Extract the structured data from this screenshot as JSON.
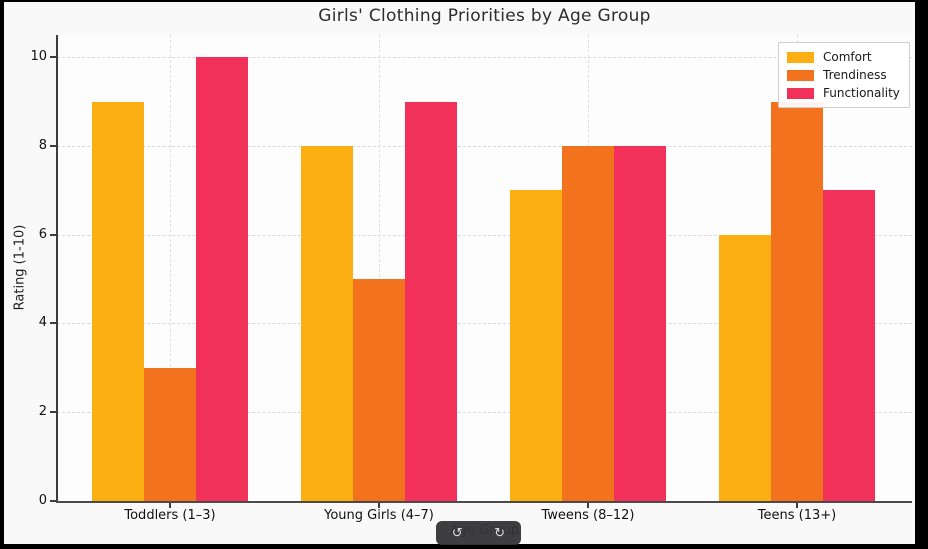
{
  "chart_data": {
    "type": "bar",
    "title": "Girls' Clothing Priorities by Age Group",
    "xlabel": "Age Group",
    "ylabel": "Rating (1-10)",
    "categories": [
      "Toddlers (1–3)",
      "Young Girls (4–7)",
      "Tweens (8–12)",
      "Teens (13+)"
    ],
    "series": [
      {
        "name": "Comfort",
        "color": "#FCAF13",
        "values": [
          9,
          8,
          7,
          6
        ]
      },
      {
        "name": "Trendiness",
        "color": "#F3721D",
        "values": [
          3,
          5,
          8,
          9
        ]
      },
      {
        "name": "Functionality",
        "color": "#F2315A",
        "values": [
          10,
          9,
          8,
          7
        ]
      }
    ],
    "ylim": [
      0,
      10.5
    ],
    "yticks": [
      0,
      2,
      4,
      6,
      8,
      10
    ],
    "grid": true,
    "legend_position": "top-right"
  },
  "toolbar": {
    "undo_icon": "↺",
    "redo_icon": "↻"
  }
}
